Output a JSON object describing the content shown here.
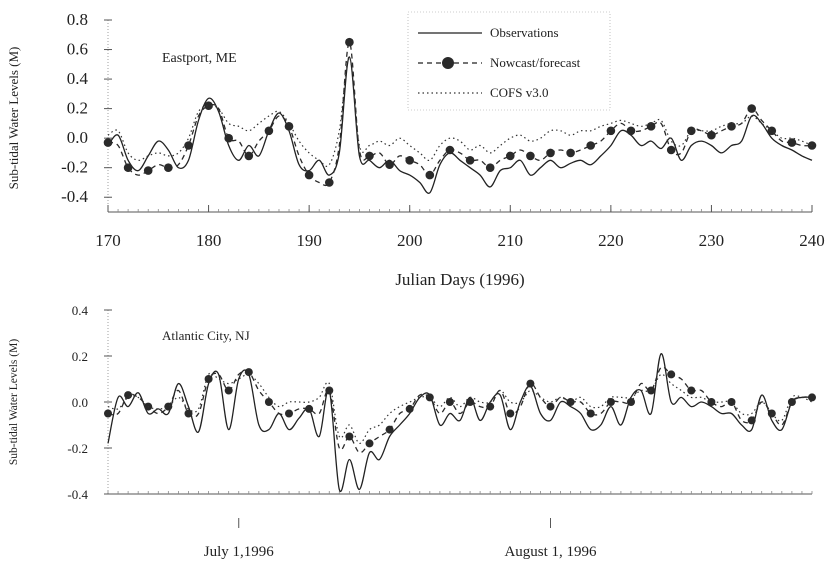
{
  "colors": {
    "observations": "#222222",
    "nowcast": "#2a2a2a",
    "cofs": "#333333",
    "axis": "#555555"
  },
  "chart_data": [
    {
      "type": "line",
      "panel": "top",
      "annotation": "Eastport, ME",
      "title": "",
      "xlabel": "Julian Days (1996)",
      "ylabel": "Sub-tidal Water Levels (M)",
      "xlim": [
        170,
        240
      ],
      "ylim": [
        -0.5,
        0.8
      ],
      "xticks": [
        170,
        180,
        190,
        200,
        210,
        220,
        230,
        240
      ],
      "xtick_labels": [
        "170",
        "180",
        "190",
        "200",
        "210",
        "220",
        "230",
        "240"
      ],
      "yticks": [
        -0.4,
        -0.2,
        0.0,
        0.2,
        0.4,
        0.6,
        0.8
      ],
      "ytick_labels": [
        "-0.4",
        "-0.2",
        "0.0",
        "0.2",
        "0.4",
        "0.6",
        "0.8"
      ],
      "legend_position": "top-right",
      "legend": [
        "Observations",
        "Nowcast/forecast",
        "COFS v3.0"
      ],
      "x": [
        170,
        171,
        172,
        173,
        174,
        175,
        176,
        177,
        178,
        179,
        180,
        181,
        182,
        183,
        184,
        185,
        186,
        187,
        188,
        189,
        190,
        191,
        192,
        193,
        194,
        195,
        196,
        197,
        198,
        199,
        200,
        201,
        202,
        203,
        204,
        205,
        206,
        207,
        208,
        209,
        210,
        211,
        212,
        213,
        214,
        215,
        216,
        217,
        218,
        219,
        220,
        221,
        222,
        223,
        224,
        225,
        226,
        227,
        228,
        229,
        230,
        231,
        232,
        233,
        234,
        235,
        236,
        237,
        238,
        239,
        240
      ],
      "series": [
        {
          "name": "Observations",
          "style": "solid",
          "values": [
            -0.05,
            0.02,
            -0.15,
            -0.22,
            -0.12,
            -0.02,
            -0.08,
            -0.2,
            -0.15,
            0.12,
            0.27,
            0.18,
            -0.05,
            -0.15,
            -0.05,
            -0.12,
            0.05,
            0.17,
            0.05,
            -0.18,
            -0.22,
            -0.15,
            -0.25,
            -0.1,
            0.55,
            -0.12,
            -0.15,
            -0.2,
            -0.15,
            -0.22,
            -0.25,
            -0.3,
            -0.37,
            -0.18,
            -0.1,
            -0.15,
            -0.2,
            -0.25,
            -0.33,
            -0.22,
            -0.2,
            -0.15,
            -0.25,
            -0.2,
            -0.15,
            -0.2,
            -0.17,
            -0.15,
            -0.18,
            -0.12,
            -0.05,
            0.05,
            0.02,
            -0.05,
            -0.02,
            -0.07,
            0.0,
            -0.15,
            -0.05,
            -0.02,
            -0.05,
            -0.1,
            -0.05,
            -0.02,
            0.15,
            0.1,
            0.0,
            -0.05,
            -0.08,
            -0.12,
            -0.15
          ]
        },
        {
          "name": "Nowcast/forecast",
          "style": "dashed-markers",
          "values": [
            -0.03,
            -0.05,
            -0.2,
            -0.25,
            -0.22,
            -0.18,
            -0.2,
            -0.18,
            -0.05,
            0.15,
            0.22,
            0.2,
            0.0,
            -0.02,
            -0.12,
            -0.02,
            0.05,
            0.15,
            0.08,
            -0.12,
            -0.25,
            -0.3,
            -0.3,
            -0.05,
            0.65,
            -0.08,
            -0.12,
            -0.1,
            -0.18,
            -0.12,
            -0.15,
            -0.18,
            -0.25,
            -0.15,
            -0.08,
            -0.1,
            -0.15,
            -0.15,
            -0.2,
            -0.15,
            -0.12,
            -0.08,
            -0.12,
            -0.15,
            -0.1,
            -0.08,
            -0.1,
            -0.08,
            -0.05,
            -0.02,
            0.05,
            0.1,
            0.05,
            0.05,
            0.08,
            0.1,
            -0.08,
            -0.1,
            0.05,
            0.05,
            0.02,
            0.05,
            0.08,
            0.1,
            0.2,
            0.12,
            0.05,
            -0.02,
            -0.03,
            -0.05,
            -0.05
          ]
        },
        {
          "name": "COFS v3.0",
          "style": "dotted",
          "values": [
            0.02,
            0.05,
            -0.1,
            -0.15,
            -0.12,
            -0.1,
            -0.12,
            -0.1,
            0.0,
            0.18,
            0.22,
            0.2,
            0.1,
            0.08,
            0.05,
            0.1,
            0.15,
            0.18,
            0.1,
            -0.02,
            -0.1,
            -0.15,
            -0.18,
            0.05,
            0.55,
            -0.05,
            -0.05,
            -0.02,
            -0.05,
            0.0,
            -0.05,
            -0.1,
            -0.15,
            -0.05,
            0.0,
            -0.02,
            -0.08,
            -0.05,
            -0.1,
            -0.05,
            0.0,
            0.02,
            -0.02,
            0.0,
            0.05,
            0.05,
            0.02,
            0.05,
            0.05,
            0.08,
            0.1,
            0.12,
            0.1,
            0.08,
            0.1,
            0.12,
            -0.02,
            -0.05,
            0.05,
            0.05,
            0.05,
            0.08,
            0.1,
            0.1,
            0.15,
            0.1,
            0.05,
            0.0,
            0.0,
            -0.02,
            -0.05
          ]
        }
      ]
    },
    {
      "type": "line",
      "panel": "bottom",
      "annotation": "Atlantic City, NJ",
      "title": "",
      "xlabel": "",
      "ylabel": "Sub-tidal Water Levels (M)",
      "xlim": [
        170,
        240
      ],
      "ylim": [
        -0.4,
        0.4
      ],
      "xticks": [
        183,
        214
      ],
      "xtick_labels": [
        "July 1,1996",
        "August 1, 1996"
      ],
      "yticks": [
        -0.4,
        -0.2,
        0.0,
        0.2,
        0.4
      ],
      "ytick_labels": [
        "-0.4",
        "-0.2",
        "0.0",
        "0.2",
        "0.4"
      ],
      "x": [
        170,
        171,
        172,
        173,
        174,
        175,
        176,
        177,
        178,
        179,
        180,
        181,
        182,
        183,
        184,
        185,
        186,
        187,
        188,
        189,
        190,
        191,
        192,
        193,
        194,
        195,
        196,
        197,
        198,
        199,
        200,
        201,
        202,
        203,
        204,
        205,
        206,
        207,
        208,
        209,
        210,
        211,
        212,
        213,
        214,
        215,
        216,
        217,
        218,
        219,
        220,
        221,
        222,
        223,
        224,
        225,
        226,
        227,
        228,
        229,
        230,
        231,
        232,
        233,
        234,
        235,
        236,
        237,
        238,
        239,
        240
      ],
      "series": [
        {
          "name": "Observations",
          "style": "solid",
          "values": [
            -0.18,
            0.02,
            -0.02,
            0.04,
            -0.05,
            -0.03,
            -0.05,
            0.08,
            -0.02,
            -0.13,
            0.08,
            0.12,
            -0.12,
            0.1,
            0.12,
            -0.1,
            -0.12,
            -0.05,
            -0.12,
            -0.07,
            -0.03,
            -0.15,
            0.05,
            -0.38,
            -0.25,
            -0.38,
            -0.22,
            -0.25,
            -0.15,
            -0.1,
            -0.05,
            0.02,
            0.03,
            -0.1,
            -0.05,
            -0.08,
            0.02,
            -0.08,
            0.0,
            0.03,
            -0.12,
            0.0,
            0.07,
            -0.05,
            -0.08,
            0.0,
            -0.02,
            -0.05,
            -0.12,
            -0.1,
            -0.02,
            -0.1,
            0.02,
            0.05,
            -0.05,
            0.21,
            0.0,
            0.02,
            -0.02,
            0.0,
            -0.02,
            -0.05,
            -0.05,
            -0.1,
            -0.12,
            0.03,
            -0.08,
            -0.12,
            0.0,
            0.02,
            0.02
          ]
        },
        {
          "name": "Nowcast/forecast",
          "style": "dashed-markers",
          "values": [
            -0.05,
            -0.05,
            0.03,
            0.02,
            -0.02,
            -0.05,
            -0.02,
            0.05,
            -0.05,
            -0.05,
            0.1,
            0.12,
            0.05,
            0.12,
            0.13,
            0.05,
            0.0,
            -0.05,
            -0.05,
            -0.03,
            -0.03,
            -0.05,
            0.05,
            -0.2,
            -0.15,
            -0.22,
            -0.18,
            -0.15,
            -0.12,
            -0.05,
            -0.03,
            0.03,
            0.02,
            -0.05,
            0.0,
            -0.05,
            0.0,
            -0.02,
            -0.02,
            0.05,
            -0.05,
            -0.02,
            0.08,
            0.02,
            -0.02,
            0.02,
            0.0,
            0.0,
            -0.05,
            -0.05,
            0.0,
            0.0,
            0.0,
            0.08,
            0.05,
            0.15,
            0.12,
            0.1,
            0.05,
            0.05,
            0.0,
            -0.02,
            0.0,
            -0.08,
            -0.08,
            0.0,
            -0.05,
            -0.1,
            0.0,
            0.02,
            0.02
          ]
        },
        {
          "name": "COFS v3.0",
          "style": "dotted",
          "values": [
            -0.02,
            -0.03,
            0.02,
            0.02,
            -0.02,
            -0.03,
            -0.02,
            0.02,
            -0.03,
            -0.03,
            0.12,
            0.1,
            0.08,
            0.1,
            0.12,
            0.08,
            0.02,
            -0.02,
            0.0,
            0.0,
            0.0,
            0.02,
            0.08,
            -0.15,
            -0.1,
            -0.18,
            -0.12,
            -0.1,
            -0.05,
            -0.02,
            0.0,
            0.02,
            0.02,
            -0.02,
            0.02,
            -0.02,
            0.02,
            0.0,
            0.0,
            0.05,
            0.0,
            0.0,
            0.05,
            0.02,
            0.0,
            0.02,
            0.0,
            0.02,
            -0.02,
            -0.02,
            0.02,
            0.02,
            0.02,
            0.05,
            0.05,
            0.12,
            0.08,
            0.05,
            0.02,
            0.02,
            0.0,
            0.0,
            0.0,
            -0.05,
            -0.05,
            0.0,
            -0.05,
            -0.08,
            0.02,
            0.02,
            0.0
          ]
        }
      ]
    }
  ]
}
